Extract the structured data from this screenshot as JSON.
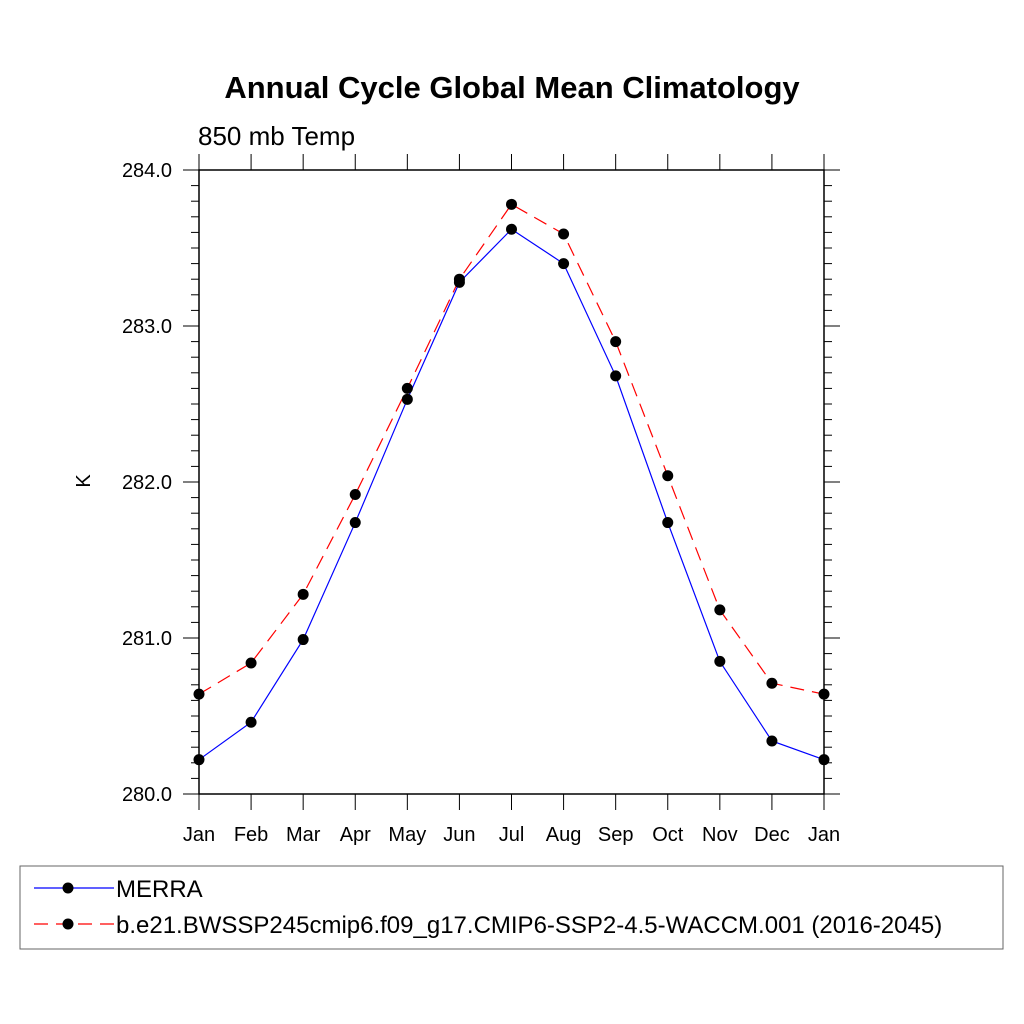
{
  "chart_data": {
    "type": "line",
    "title": "Annual Cycle Global Mean Climatology",
    "subtitle": "850 mb Temp",
    "xlabel": "",
    "ylabel": "K",
    "categories": [
      "Jan",
      "Feb",
      "Mar",
      "Apr",
      "May",
      "Jun",
      "Jul",
      "Aug",
      "Sep",
      "Oct",
      "Nov",
      "Dec",
      "Jan"
    ],
    "ylim": [
      280.0,
      284.0
    ],
    "yticks": [
      "280.0",
      "281.0",
      "282.0",
      "283.0",
      "284.0"
    ],
    "y_minor_step": 0.1,
    "grid": false,
    "legend_position": "bottom",
    "series": [
      {
        "name": "MERRA",
        "color": "#0000ff",
        "style": "solid",
        "marker": "circle",
        "values": [
          280.22,
          280.46,
          280.99,
          281.74,
          282.53,
          283.28,
          283.62,
          283.4,
          282.68,
          281.74,
          280.85,
          280.34,
          280.22
        ]
      },
      {
        "name": "b.e21.BWSSP245cmip6.f09_g17.CMIP6-SSP2-4.5-WACCM.001 (2016-2045)",
        "color": "#ff0000",
        "style": "dashed",
        "marker": "circle",
        "values": [
          280.64,
          280.84,
          281.28,
          281.92,
          282.6,
          283.3,
          283.78,
          283.59,
          282.9,
          282.04,
          281.18,
          280.71,
          280.64
        ]
      }
    ]
  }
}
